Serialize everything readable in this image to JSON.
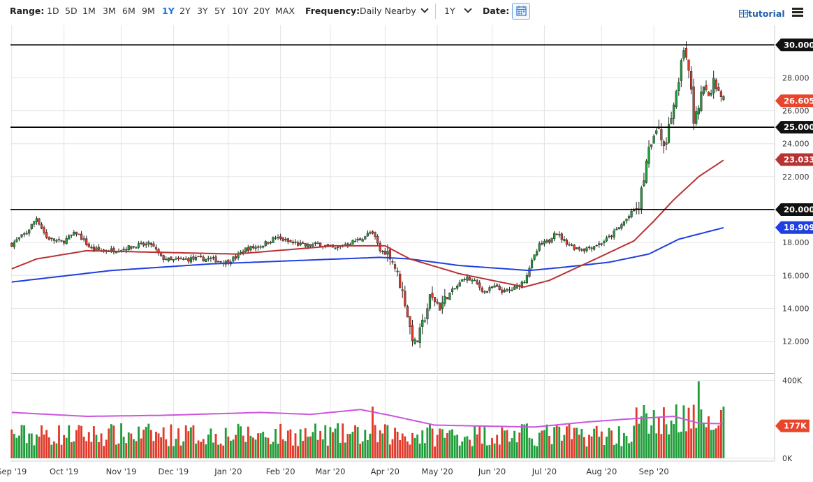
{
  "toolbar": {
    "range_label": "Range:",
    "ranges": [
      "1D",
      "5D",
      "1M",
      "3M",
      "6M",
      "9M",
      "1Y",
      "2Y",
      "3Y",
      "5Y",
      "10Y",
      "20Y",
      "MAX"
    ],
    "active_range": "1Y",
    "frequency_label": "Frequency:",
    "frequency_value": "Daily Nearby",
    "period_value": "1Y",
    "date_label": "Date:",
    "tutorial_label": "tutorial",
    "icons": [
      "chevron-down-icon",
      "calendar-icon",
      "tutorial-icon",
      "menu-icon"
    ]
  },
  "chart_data": {
    "type": "candlestick",
    "price_axis": {
      "ticks": [
        "30.000",
        "28.000",
        "26.000",
        "24.000",
        "22.000",
        "20.000",
        "18.000",
        "16.000",
        "14.000",
        "12.000"
      ],
      "ylim": [
        10.2,
        31.2
      ]
    },
    "volume_axis": {
      "ticks": [
        "400K",
        "0K"
      ],
      "ylim": [
        0,
        430000
      ]
    },
    "x_ticks": [
      "Sep '19",
      "Oct '19",
      "Nov '19",
      "Dec '19",
      "Jan '20",
      "Feb '20",
      "Mar '20",
      "Apr '20",
      "May '20",
      "Jun '20",
      "Jul '20",
      "Aug '20",
      "Sep '20"
    ],
    "horizontal_lines": [
      30.0,
      25.0,
      20.0
    ],
    "labels": [
      {
        "text": "30.000",
        "color": "#111111"
      },
      {
        "text": "26.605",
        "color": "#e8452c"
      },
      {
        "text": "25.000",
        "color": "#111111"
      },
      {
        "text": "23.033",
        "color": "#b83232"
      },
      {
        "text": "20.000",
        "color": "#111111"
      },
      {
        "text": "18.909",
        "color": "#1f3fe0"
      },
      {
        "text": "177K",
        "color": "#e8452c"
      }
    ],
    "last_price": 26.605,
    "ma_red_last": 23.033,
    "ma_blue_last": 18.909,
    "volume_ma_last": "177K",
    "price_path": [
      [
        0,
        17.9
      ],
      [
        6,
        18.6
      ],
      [
        10,
        19.5
      ],
      [
        14,
        18.3
      ],
      [
        20,
        18.0
      ],
      [
        26,
        18.6
      ],
      [
        32,
        17.6
      ],
      [
        38,
        17.5
      ],
      [
        44,
        17.6
      ],
      [
        50,
        17.8
      ],
      [
        56,
        17.9
      ],
      [
        60,
        17.1
      ],
      [
        64,
        16.9
      ],
      [
        72,
        17.0
      ],
      [
        80,
        17.0
      ],
      [
        86,
        16.8
      ],
      [
        90,
        17.1
      ],
      [
        94,
        17.6
      ],
      [
        100,
        17.8
      ],
      [
        106,
        18.3
      ],
      [
        112,
        18.0
      ],
      [
        118,
        17.8
      ],
      [
        124,
        17.9
      ],
      [
        130,
        17.6
      ],
      [
        134,
        17.9
      ],
      [
        140,
        18.2
      ],
      [
        144,
        18.6
      ],
      [
        146,
        18.3
      ],
      [
        148,
        17.5
      ],
      [
        152,
        17.3
      ],
      [
        154,
        16.5
      ],
      [
        156,
        15.5
      ],
      [
        158,
        14.4
      ],
      [
        160,
        12.8
      ],
      [
        162,
        11.8
      ],
      [
        164,
        12.5
      ],
      [
        166,
        13.5
      ],
      [
        168,
        14.6
      ],
      [
        170,
        14.5
      ],
      [
        172,
        14.1
      ],
      [
        176,
        14.9
      ],
      [
        180,
        15.5
      ],
      [
        182,
        15.9
      ],
      [
        186,
        15.6
      ],
      [
        190,
        15.0
      ],
      [
        194,
        15.3
      ],
      [
        198,
        15.0
      ],
      [
        202,
        15.2
      ],
      [
        206,
        15.7
      ],
      [
        208,
        16.5
      ],
      [
        212,
        17.8
      ],
      [
        216,
        18.1
      ],
      [
        218,
        18.7
      ],
      [
        222,
        18.1
      ],
      [
        226,
        17.7
      ],
      [
        230,
        17.6
      ],
      [
        236,
        17.9
      ],
      [
        240,
        18.3
      ],
      [
        244,
        18.9
      ],
      [
        248,
        19.6
      ],
      [
        252,
        20.3
      ],
      [
        254,
        21.9
      ],
      [
        256,
        23.5
      ],
      [
        258,
        24.5
      ],
      [
        260,
        24.8
      ],
      [
        262,
        23.8
      ],
      [
        264,
        25.0
      ],
      [
        266,
        26.5
      ],
      [
        268,
        28.0
      ],
      [
        270,
        29.5
      ],
      [
        272,
        28.5
      ],
      [
        274,
        25.5
      ],
      [
        276,
        26.5
      ],
      [
        278,
        27.5
      ],
      [
        280,
        26.8
      ],
      [
        282,
        27.8
      ],
      [
        284,
        27.3
      ],
      [
        286,
        26.7
      ]
    ],
    "ma_red_path": [
      [
        0,
        16.4
      ],
      [
        10,
        17.0
      ],
      [
        30,
        17.5
      ],
      [
        60,
        17.4
      ],
      [
        90,
        17.3
      ],
      [
        130,
        17.8
      ],
      [
        150,
        17.8
      ],
      [
        160,
        17.0
      ],
      [
        180,
        16.1
      ],
      [
        206,
        15.3
      ],
      [
        216,
        15.7
      ],
      [
        236,
        17.1
      ],
      [
        250,
        18.1
      ],
      [
        258,
        19.3
      ],
      [
        266,
        20.6
      ],
      [
        276,
        22.0
      ],
      [
        286,
        23.0
      ]
    ],
    "ma_blue_path": [
      [
        0,
        15.6
      ],
      [
        40,
        16.3
      ],
      [
        80,
        16.7
      ],
      [
        148,
        17.1
      ],
      [
        160,
        17.0
      ],
      [
        180,
        16.6
      ],
      [
        208,
        16.3
      ],
      [
        222,
        16.5
      ],
      [
        240,
        16.8
      ],
      [
        256,
        17.3
      ],
      [
        268,
        18.2
      ],
      [
        286,
        18.9
      ]
    ],
    "volume_ma_path": [
      [
        0,
        235000
      ],
      [
        30,
        215000
      ],
      [
        60,
        220000
      ],
      [
        100,
        235000
      ],
      [
        120,
        225000
      ],
      [
        140,
        250000
      ],
      [
        152,
        220000
      ],
      [
        170,
        170000
      ],
      [
        190,
        165000
      ],
      [
        210,
        160000
      ],
      [
        230,
        185000
      ],
      [
        246,
        200000
      ],
      [
        266,
        215000
      ],
      [
        276,
        180000
      ],
      [
        286,
        177000
      ]
    ]
  }
}
